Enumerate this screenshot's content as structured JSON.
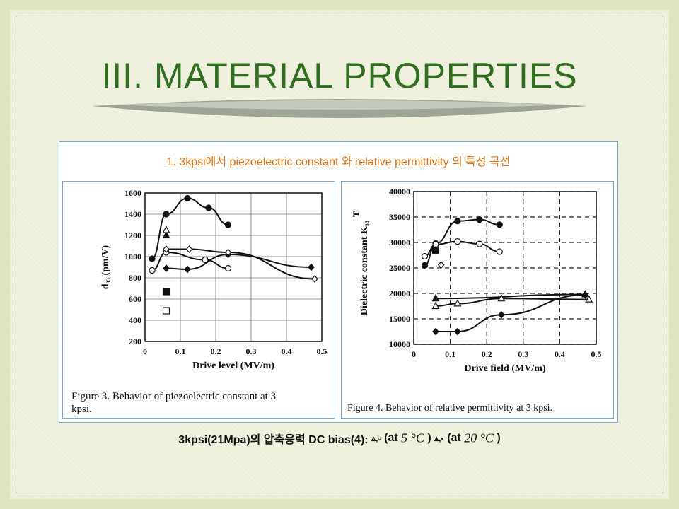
{
  "slide": {
    "title": "III. MATERIAL PROPERTIES",
    "panel_heading": "1. 3kpsi에서 piezoelectric constant 와   relative permittivity 의 특성 곡선",
    "bottom_note": {
      "part1": "3kpsi(21Mpa)의 압축응력  DC bias(4): ",
      "markers1": "▵,▫",
      "part2": "  (at",
      "temp1": "5 °C",
      "part3": " )",
      "markers2": "▴,▪",
      "part4": "  (at",
      "temp2": "20 °C",
      "part5": ")"
    }
  },
  "colors": {
    "title": "#2f6f1f",
    "heading": "#e07414",
    "panel_border": "#7aa7cf",
    "background": "#ecefd8"
  },
  "chart_data": [
    {
      "type": "line",
      "caption_line1": "Figure 3.  Behavior of piezoelectric constant at 3",
      "caption_line2": "kpsi.",
      "xlabel": "Drive level (MV/m)",
      "ylabel": "d₃₃ (pm/V)",
      "xlim": [
        0,
        0.5
      ],
      "ylim": [
        200,
        1600
      ],
      "x_ticks": [
        "0",
        "0.1",
        "0.2",
        "0.3",
        "0.4",
        "0.5"
      ],
      "y_ticks": [
        "200",
        "400",
        "600",
        "800",
        "1000",
        "1200",
        "1400",
        "1600"
      ],
      "grid": true,
      "series": [
        {
          "marker": "filled-circle",
          "points": [
            [
              0.02,
              980
            ],
            [
              0.06,
              1400
            ],
            [
              0.12,
              1550
            ],
            [
              0.18,
              1460
            ],
            [
              0.235,
              1300
            ]
          ]
        },
        {
          "marker": "open-circle",
          "points": [
            [
              0.02,
              870
            ],
            [
              0.06,
              1040
            ],
            [
              0.17,
              970
            ],
            [
              0.235,
              890
            ]
          ]
        },
        {
          "marker": "filled-diamond",
          "points": [
            [
              0.06,
              890
            ],
            [
              0.12,
              880
            ],
            [
              0.235,
              1020
            ],
            [
              0.47,
              900
            ]
          ]
        },
        {
          "marker": "open-diamond",
          "points": [
            [
              0.06,
              1070
            ],
            [
              0.125,
              1070
            ],
            [
              0.235,
              1040
            ],
            [
              0.48,
              790
            ]
          ]
        },
        {
          "marker": "filled-triangle",
          "points": [
            [
              0.06,
              1200
            ]
          ]
        },
        {
          "marker": "open-triangle",
          "points": [
            [
              0.06,
              1250
            ]
          ]
        },
        {
          "marker": "filled-square",
          "points": [
            [
              0.06,
              670
            ]
          ]
        },
        {
          "marker": "open-square",
          "points": [
            [
              0.06,
              490
            ]
          ]
        }
      ]
    },
    {
      "type": "line",
      "caption": "Figure 4.  Behavior of relative permittivity at 3 kpsi.",
      "xlabel": "Drive field (MV/m)",
      "ylabel": "Dielectric constant K₃₃",
      "ylabel_sup": "T",
      "xlim": [
        0,
        0.5
      ],
      "ylim": [
        10000,
        40000
      ],
      "x_ticks": [
        "0",
        "0.1",
        "0.2",
        "0.3",
        "0.4",
        "0.5"
      ],
      "y_ticks": [
        "10000",
        "15000",
        "20000",
        "25000",
        "30000",
        "35000",
        "40000"
      ],
      "grid": "dashed",
      "series": [
        {
          "marker": "filled-circle",
          "points": [
            [
              0.03,
              25500
            ],
            [
              0.06,
              29800
            ],
            [
              0.12,
              34200
            ],
            [
              0.18,
              34500
            ],
            [
              0.235,
              33500
            ]
          ]
        },
        {
          "marker": "open-circle",
          "points": [
            [
              0.03,
              27300
            ],
            [
              0.06,
              29600
            ],
            [
              0.12,
              30200
            ],
            [
              0.18,
              29700
            ],
            [
              0.235,
              28200
            ]
          ]
        },
        {
          "marker": "filled-square",
          "points": [
            [
              0.06,
              28500
            ]
          ]
        },
        {
          "marker": "open-diamond",
          "points": [
            [
              0.075,
              25600
            ]
          ]
        },
        {
          "marker": "filled-triangle",
          "points": [
            [
              0.06,
              19000
            ],
            [
              0.47,
              19800
            ]
          ]
        },
        {
          "marker": "open-triangle",
          "points": [
            [
              0.06,
              17500
            ],
            [
              0.12,
              18000
            ],
            [
              0.24,
              19000
            ],
            [
              0.48,
              18800
            ]
          ]
        },
        {
          "marker": "filled-diamond",
          "points": [
            [
              0.06,
              12500
            ],
            [
              0.12,
              12500
            ],
            [
              0.24,
              15800
            ],
            [
              0.47,
              19700
            ]
          ]
        }
      ]
    }
  ]
}
